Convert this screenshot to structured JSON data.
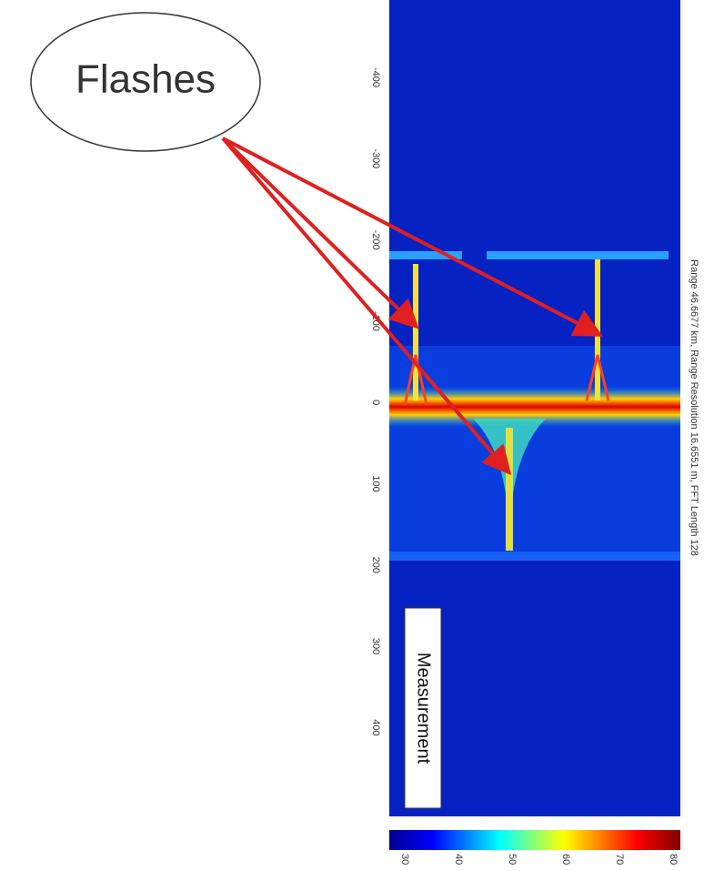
{
  "annotation": {
    "label": "Flashes"
  },
  "figure": {
    "title": "Range 46.6677 km, Range Resolution 16.6551 m, FFT Length 128",
    "legend_box": "Measurement",
    "axis_ticks": [
      -400,
      -300,
      -200,
      -100,
      0,
      100,
      200,
      300,
      400
    ],
    "colorbar_ticks": [
      30,
      40,
      50,
      60,
      70,
      80
    ]
  }
}
